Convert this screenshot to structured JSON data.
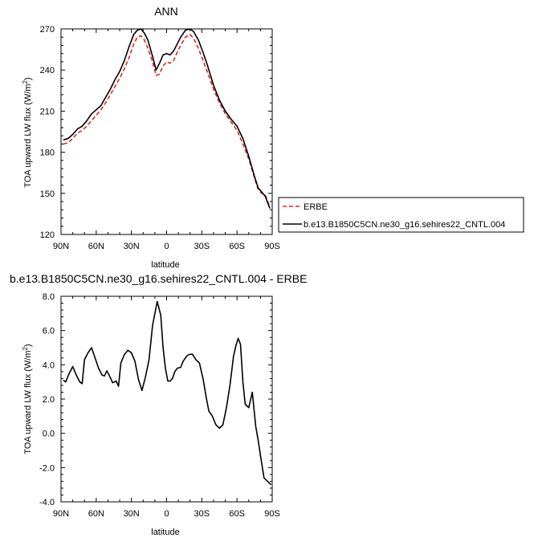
{
  "chart_data": [
    {
      "type": "line",
      "title": "ANN",
      "xlabel": "latitude",
      "ylabel_main": "TOA upward LW flux (W/m",
      "ylabel_sup": "2",
      "ylabel_tail": ")",
      "xlim": [
        -90,
        90
      ],
      "ylim": [
        120,
        270
      ],
      "xticks": [
        -90,
        -60,
        -30,
        0,
        30,
        60,
        90
      ],
      "xtick_labels": [
        "90N",
        "60N",
        "30N",
        "0",
        "30S",
        "60S",
        "90S"
      ],
      "yticks": [
        120,
        150,
        180,
        210,
        240,
        270
      ],
      "ytick_labels": [
        "120",
        "150",
        "180",
        "210",
        "240",
        "270"
      ],
      "legend_placement": "right",
      "series": [
        {
          "name": "ERBE",
          "color": "#e8231e",
          "dash": "dashed",
          "x": [
            -88,
            -84,
            -80,
            -76,
            -72,
            -68,
            -64,
            -60,
            -56,
            -52,
            -48,
            -44,
            -40,
            -36,
            -32,
            -28,
            -25,
            -22,
            -19,
            -16,
            -12,
            -9,
            -6,
            -3,
            0,
            3,
            6,
            9,
            12,
            16,
            20,
            23,
            27,
            31,
            35,
            40,
            45,
            50,
            55,
            60,
            65,
            70,
            75,
            78,
            81,
            84,
            88
          ],
          "values": [
            186,
            187,
            190,
            194,
            196,
            199,
            203,
            207,
            211,
            216,
            222,
            228,
            234,
            241,
            249,
            259,
            264,
            265,
            262,
            256,
            246,
            236,
            237,
            243,
            246,
            245,
            247,
            253,
            258,
            264,
            266,
            263,
            256,
            247,
            238,
            226,
            216,
            208,
            202,
            196,
            186,
            175,
            161,
            153,
            150,
            149,
            140
          ]
        },
        {
          "name": "b.e13.B1850C5CN.ne30_g16.sehires22_CNTL.004",
          "color": "#000000",
          "dash": "solid",
          "x": [
            -88,
            -84,
            -80,
            -76,
            -72,
            -68,
            -64,
            -60,
            -56,
            -52,
            -48,
            -44,
            -40,
            -36,
            -32,
            -28,
            -25,
            -22,
            -19,
            -16,
            -12,
            -9,
            -6,
            -3,
            0,
            3,
            6,
            9,
            12,
            16,
            20,
            23,
            27,
            31,
            35,
            40,
            45,
            50,
            55,
            60,
            65,
            70,
            75,
            78,
            81,
            84,
            88
          ],
          "values": [
            189,
            190,
            193,
            197,
            199,
            203,
            208,
            211,
            214,
            220,
            226,
            233,
            239,
            247,
            257,
            266,
            269,
            270,
            267,
            262,
            250,
            240,
            245,
            251,
            252,
            251,
            254,
            259,
            264,
            269,
            270,
            268,
            262,
            253,
            243,
            229,
            218,
            210,
            204,
            199,
            190,
            177,
            162,
            154,
            151,
            148,
            139
          ]
        }
      ]
    },
    {
      "type": "line",
      "title": "b.e13.B1850C5CN.ne30_g16.sehires22_CNTL.004 - ERBE",
      "xlabel": "latitude",
      "ylabel_main": "TOA upward LW flux (W/m",
      "ylabel_sup": "2",
      "ylabel_tail": ")",
      "xlim": [
        -90,
        90
      ],
      "ylim": [
        -4,
        8
      ],
      "xticks": [
        -90,
        -60,
        -30,
        0,
        30,
        60,
        90
      ],
      "xtick_labels": [
        "90N",
        "60N",
        "30N",
        "0",
        "30S",
        "60S",
        "90S"
      ],
      "yticks": [
        -4,
        -2,
        0,
        2,
        4,
        6,
        8
      ],
      "ytick_labels": [
        "-4.0",
        "-2.0",
        "0.0",
        "2.0",
        "4.0",
        "6.0",
        "8.0"
      ],
      "series": [
        {
          "color": "#000000",
          "dash": "solid",
          "x": [
            -88,
            -86,
            -83,
            -80,
            -77,
            -74,
            -72,
            -70,
            -67,
            -64,
            -61,
            -58,
            -55,
            -53,
            -51,
            -49,
            -46,
            -43,
            -41,
            -39,
            -36,
            -33,
            -30,
            -27,
            -24,
            -21,
            -18,
            -15,
            -12,
            -8,
            -5,
            -3,
            -1,
            1,
            3,
            5,
            7,
            9,
            12,
            14,
            17,
            19,
            22,
            25,
            28,
            31,
            34,
            36,
            39,
            42,
            45,
            48,
            51,
            54,
            57,
            59,
            61,
            63,
            65,
            67,
            70,
            73,
            76,
            78,
            80,
            83,
            86,
            89
          ],
          "values": [
            3.1,
            3.0,
            3.5,
            3.9,
            3.4,
            3.0,
            2.9,
            4.3,
            4.7,
            5.0,
            4.4,
            3.8,
            3.4,
            3.35,
            3.65,
            3.4,
            2.95,
            3.05,
            2.75,
            4.1,
            4.6,
            4.85,
            4.7,
            4.2,
            3.15,
            2.5,
            3.3,
            4.3,
            6.3,
            7.7,
            6.9,
            5.0,
            3.8,
            3.05,
            3.05,
            3.2,
            3.6,
            3.8,
            3.85,
            4.2,
            4.5,
            4.6,
            4.62,
            4.3,
            4.1,
            3.2,
            2.0,
            1.3,
            1.0,
            0.5,
            0.3,
            0.5,
            1.5,
            2.8,
            4.5,
            5.1,
            5.55,
            5.2,
            3.0,
            1.7,
            1.5,
            2.4,
            0.4,
            -0.4,
            -1.3,
            -2.6,
            -2.8,
            -3.0
          ]
        }
      ]
    }
  ]
}
